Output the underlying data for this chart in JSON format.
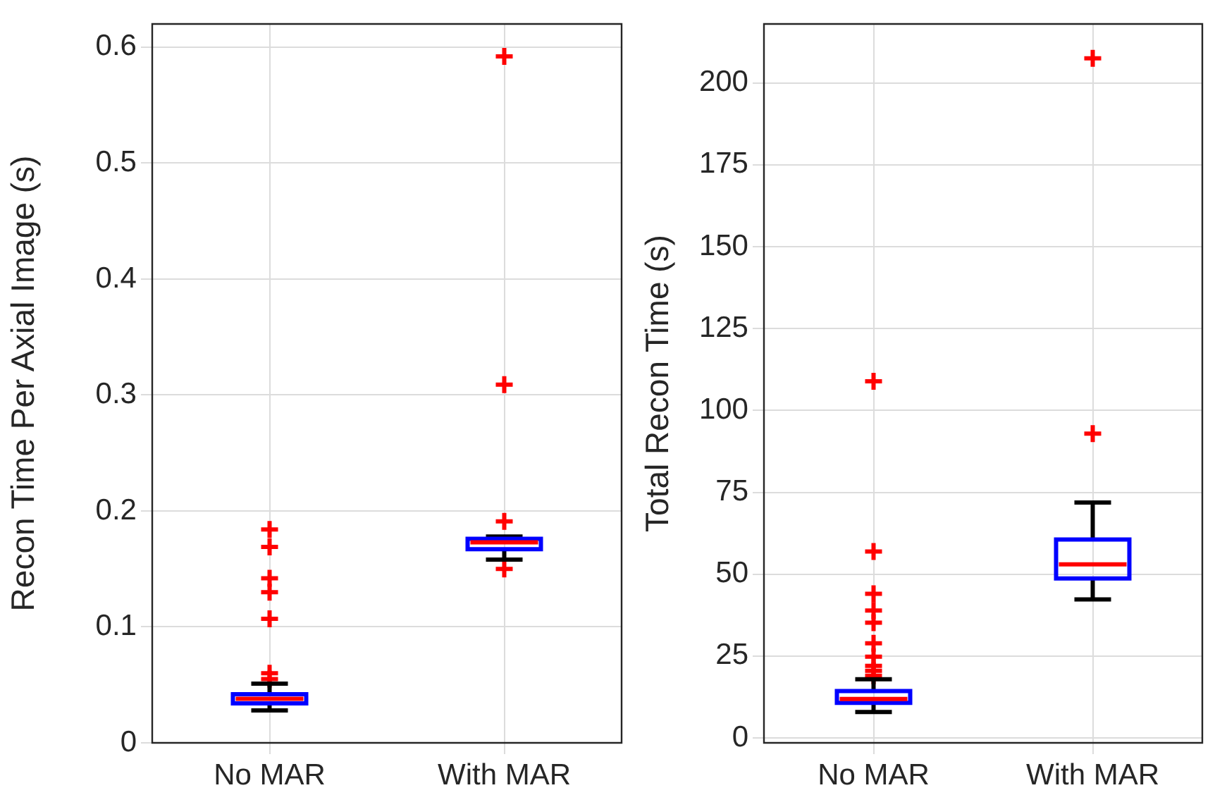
{
  "chart_data": [
    {
      "type": "box",
      "categories": [
        "No MAR",
        "With MAR"
      ],
      "ylabel": "Recon Time Per Axial Image (s)",
      "ylim": [
        0,
        0.62
      ],
      "yticks": [
        0,
        0.1,
        0.2,
        0.3,
        0.4,
        0.5,
        0.6
      ],
      "grid": true,
      "series": [
        {
          "color": "#0000ff",
          "boxes": [
            {
              "low": 0.028,
              "q1": 0.034,
              "median": 0.038,
              "q3": 0.042,
              "high": 0.051,
              "outliers": [
                0.055,
                0.06,
                0.107,
                0.13,
                0.142,
                0.169,
                0.184
              ]
            },
            {
              "low": 0.158,
              "q1": 0.167,
              "median": 0.173,
              "q3": 0.176,
              "high": 0.178,
              "outliers": [
                0.15,
                0.191,
                0.309,
                0.592
              ]
            }
          ]
        }
      ]
    },
    {
      "type": "box",
      "categories": [
        "No MAR",
        "With MAR"
      ],
      "ylabel": "Total Recon Time (s)",
      "ylim": [
        -1.5,
        218
      ],
      "yticks": [
        0,
        25,
        50,
        75,
        100,
        125,
        150,
        175,
        200
      ],
      "grid": true,
      "series": [
        {
          "color": "#0000ff",
          "boxes": [
            {
              "low": 7.9,
              "q1": 10.7,
              "median": 11.9,
              "q3": 14.3,
              "high": 17.9,
              "outliers": [
                19,
                20.5,
                22,
                24.8,
                28.9,
                35.2,
                38.9,
                44,
                56.9,
                108.9
              ]
            },
            {
              "low": 42.3,
              "q1": 48.7,
              "median": 53,
              "q3": 60.6,
              "high": 71.9,
              "outliers": [
                92.9,
                207.5
              ]
            }
          ]
        }
      ]
    }
  ]
}
